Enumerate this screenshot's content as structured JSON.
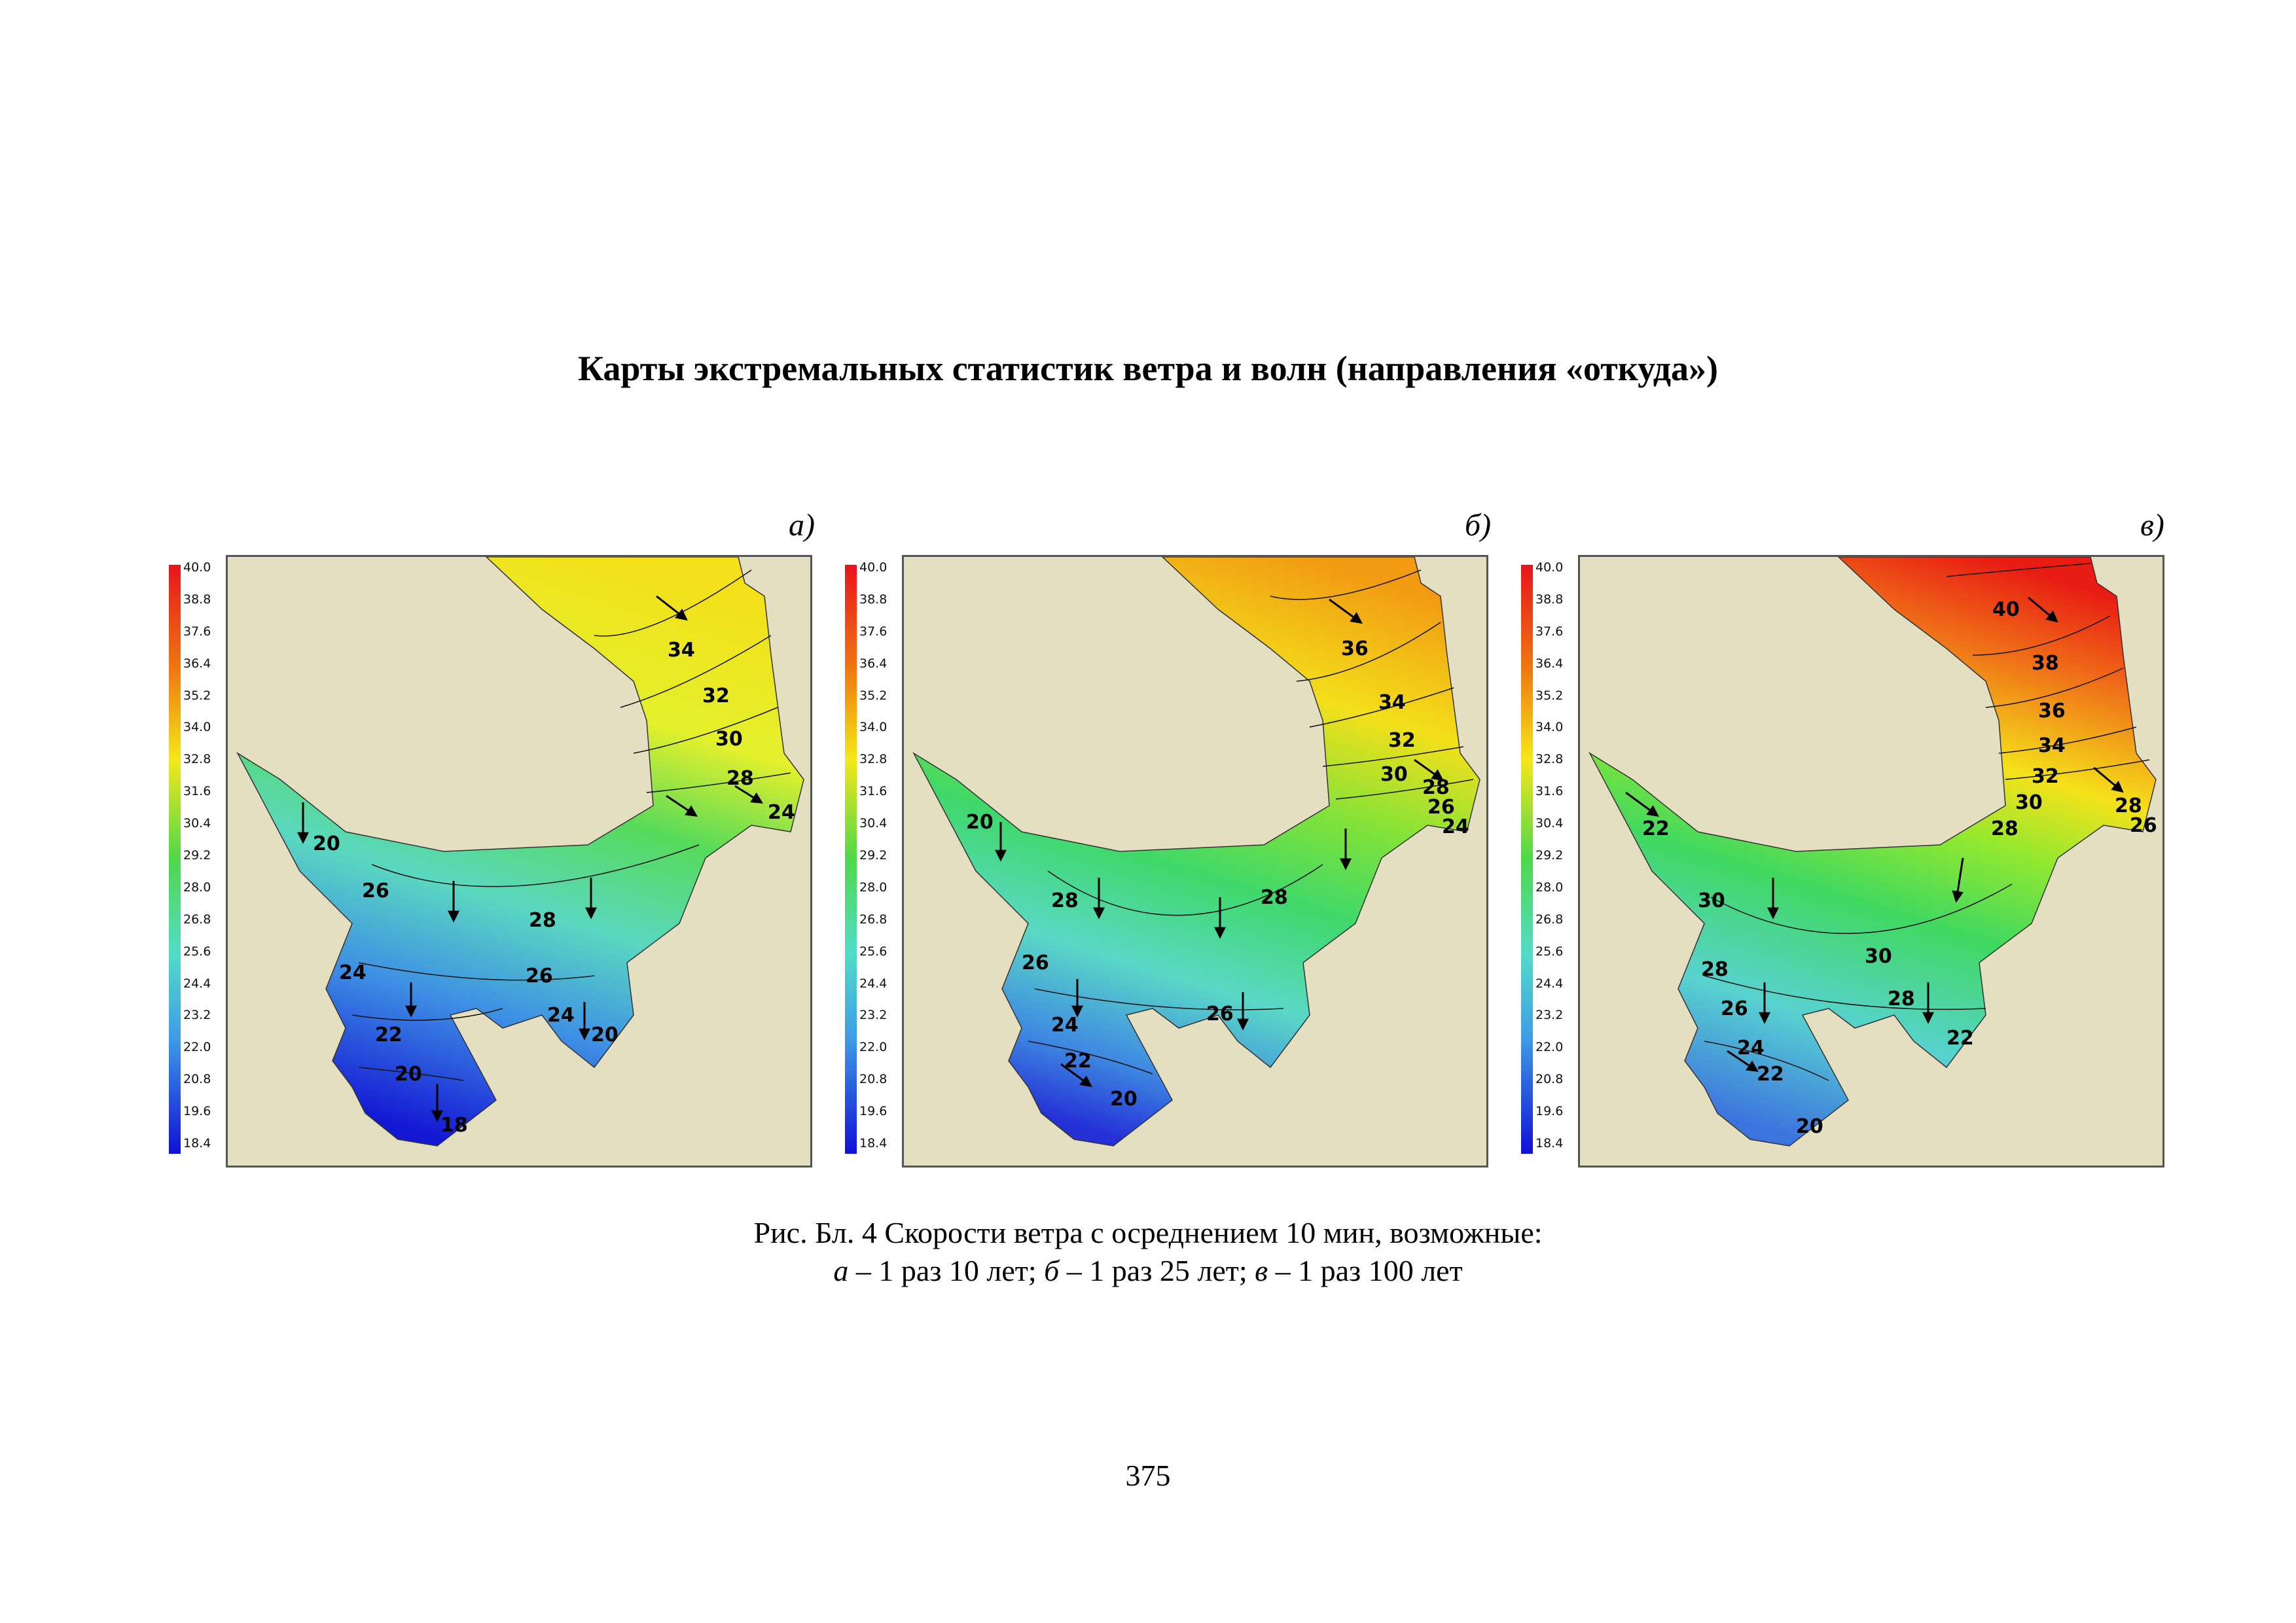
{
  "title": "Карты экстремальных статистик ветра и волн (направления «откуда»)",
  "colors": {
    "land": "#e3dfc0",
    "frame": "#555555"
  },
  "legend": {
    "ticks": [
      "40.0",
      "38.8",
      "37.6",
      "36.4",
      "35.2",
      "34.0",
      "32.8",
      "31.6",
      "30.4",
      "29.2",
      "28.0",
      "26.8",
      "25.6",
      "24.4",
      "23.2",
      "22.0",
      "20.8",
      "19.6",
      "18.4"
    ],
    "min": 18.4,
    "max": 40.0
  },
  "panels": [
    {
      "letter": "а)",
      "min_value": 18.4,
      "max_value": 35.4,
      "contour_labels": [
        "34",
        "32",
        "30",
        "28",
        "24",
        "20",
        "26",
        "28",
        "24",
        "26",
        "24",
        "22",
        "20",
        "20",
        "18"
      ]
    },
    {
      "letter": "б)",
      "min_value": 19.4,
      "max_value": 37.6,
      "contour_labels": [
        "36",
        "34",
        "32",
        "30",
        "28",
        "26",
        "24",
        "20",
        "28",
        "28",
        "26",
        "24",
        "26",
        "22",
        "20"
      ]
    },
    {
      "letter": "в)",
      "min_value": 20.0,
      "max_value": 40.0,
      "contour_labels": [
        "40",
        "38",
        "36",
        "34",
        "32",
        "28",
        "26",
        "30",
        "28",
        "22",
        "30",
        "28",
        "30",
        "28",
        "26",
        "22",
        "24",
        "22",
        "20"
      ]
    }
  ],
  "caption": {
    "line1": "Рис. Бл. 4 Скорости ветра с осреднением 10 мин, возможные:",
    "a_letter": "а",
    "a_text": " – 1 раз 10 лет; ",
    "b_letter": "б",
    "b_text": " – 1 раз 25 лет; ",
    "c_letter": "в",
    "c_text": " – 1 раз 100 лет"
  },
  "page_number": "375"
}
